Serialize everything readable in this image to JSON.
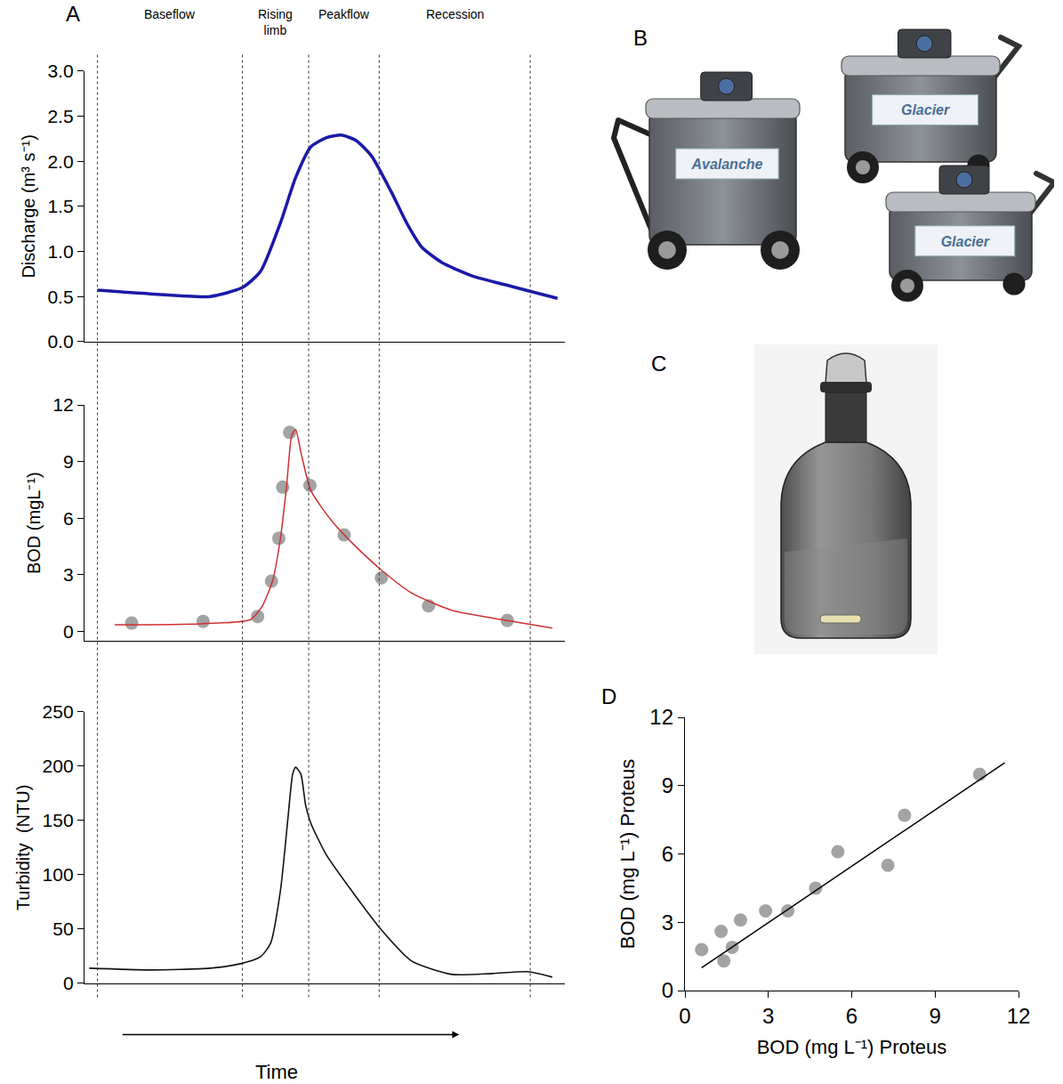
{
  "figure": {
    "panel_A": {
      "label": "A",
      "xlabel": "Time",
      "phases": [
        "Baseflow",
        "Rising limb",
        "Peakflow",
        "Recession"
      ],
      "phase_boundaries": [
        0,
        33.5,
        48.8,
        65.1,
        100
      ]
    },
    "panel_B": {
      "label": "B",
      "devices": [
        "Avalanche",
        "Glacier",
        "Glacier"
      ]
    },
    "panel_C": {
      "label": "C"
    }
  },
  "chart_data": [
    {
      "type": "line",
      "ylabel": "Discharge (m³ s⁻¹)",
      "x": [
        0,
        12.1,
        26.0,
        33.5,
        37.7,
        42.3,
        45.8,
        49.3,
        52.8,
        56.3,
        59.8,
        63.3,
        67.9,
        71.4,
        74.9,
        79.5,
        86.5,
        95.8,
        106.3
      ],
      "values": [
        0.57,
        0.53,
        0.5,
        0.6,
        0.78,
        1.32,
        1.82,
        2.16,
        2.26,
        2.29,
        2.23,
        2.06,
        1.66,
        1.32,
        1.05,
        0.88,
        0.73,
        0.61,
        0.48
      ],
      "color": "#1a1aa8",
      "xlim": [
        -3,
        108
      ],
      "ylim": [
        0,
        3
      ],
      "yticks": [
        {
          "value": 0,
          "label": "0.0"
        },
        0.5,
        {
          "value": 1,
          "label": "1.0"
        },
        1.5,
        {
          "value": 2,
          "label": "2.0"
        },
        2.5,
        {
          "value": 3,
          "label": "3.0"
        }
      ],
      "tick_labels": "y",
      "grid": false
    },
    {
      "type": "scatter",
      "ylabel": "BOD (mgL⁻¹)",
      "series": [
        {
          "type": "scatter",
          "marker": "circle",
          "color": "#a3a3a3",
          "x": [
            7.9,
            24.4,
            37.0,
            40.2,
            41.9,
            42.8,
            44.4,
            49.1,
            57.0,
            65.6,
            76.5,
            94.7
          ],
          "values": [
            0.45,
            0.54,
            0.8,
            2.67,
            4.94,
            7.65,
            10.55,
            7.74,
            5.12,
            2.85,
            1.36,
            0.59
          ]
        },
        {
          "type": "line",
          "color": "#d03030",
          "x": [
            4.0,
            23.7,
            35.3,
            38.1,
            40.5,
            42.3,
            43.7,
            44.9,
            45.8,
            47.0,
            49.3,
            54.0,
            58.6,
            65.6,
            72.6,
            81.9,
            93.5,
            105.1
          ],
          "values": [
            0.36,
            0.41,
            0.63,
            1.36,
            2.72,
            4.98,
            7.7,
            10.4,
            10.7,
            9.5,
            7.47,
            5.9,
            4.75,
            3.26,
            2.04,
            1.13,
            0.63,
            0.18
          ]
        }
      ],
      "xlim": [
        -3,
        108
      ],
      "ylim": [
        -0.5,
        12
      ],
      "yticks": [
        0,
        3,
        6,
        9,
        12
      ],
      "tick_labels": "y",
      "grid": false
    },
    {
      "type": "line",
      "ylabel": "Turbidity  (NTU)",
      "x": [
        -1.9,
        12.1,
        26.0,
        33.0,
        37.7,
        40.0,
        42.3,
        44.0,
        45.1,
        45.8,
        47.0,
        48.1,
        49.3,
        52.8,
        58.6,
        65.6,
        72.6,
        81.9,
        91.2,
        99.3,
        105.1
      ],
      "values": [
        13.9,
        12.3,
        13.9,
        18,
        24.6,
        36.9,
        86,
        151.6,
        192.6,
        199,
        192.6,
        164,
        147.5,
        118.9,
        86,
        49.2,
        20.5,
        8.2,
        9,
        10.7,
        5.7
      ],
      "color": "#111111",
      "xlim": [
        -3,
        108
      ],
      "ylim": [
        0,
        250
      ],
      "yticks": [
        0,
        50,
        100,
        150,
        200,
        250
      ],
      "tick_labels": "y",
      "grid": false
    },
    {
      "type": "scatter",
      "label": "D",
      "xlabel": "BOD (mg L⁻¹) Proteus",
      "ylabel": "BOD (mg L⁻¹) Proteus",
      "series": [
        {
          "type": "scatter",
          "marker": "circle",
          "color": "#a3a3a3",
          "x": [
            0.6,
            1.3,
            1.4,
            1.7,
            2.0,
            2.9,
            3.7,
            4.7,
            5.5,
            7.3,
            7.9,
            10.6
          ],
          "values": [
            1.8,
            2.6,
            1.3,
            1.9,
            3.1,
            3.5,
            3.5,
            4.5,
            6.1,
            5.5,
            7.7,
            9.5
          ]
        },
        {
          "type": "line",
          "color": "#000000",
          "x": [
            0.6,
            11.5
          ],
          "values": [
            1.0,
            10.0
          ]
        }
      ],
      "xlim": [
        0,
        12
      ],
      "ylim": [
        0,
        12
      ],
      "xticks": [
        0,
        3,
        6,
        9,
        12
      ],
      "yticks": [
        0,
        3,
        6,
        9,
        12
      ],
      "grid": false
    }
  ]
}
